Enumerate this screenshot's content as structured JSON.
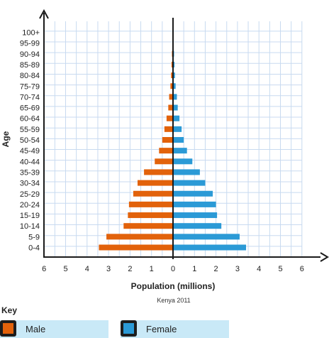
{
  "chart_data": {
    "type": "bar",
    "orientation": "horizontal",
    "title": "",
    "caption": "Kenya 2011",
    "xlabel": "Population (millions)",
    "ylabel": "Age",
    "xlim": [
      -6,
      6
    ],
    "x_tick_labels": [
      "6",
      "5",
      "4",
      "3",
      "2",
      "1",
      "0",
      "1",
      "2",
      "3",
      "4",
      "5",
      "6"
    ],
    "grid": true,
    "categories": [
      "0-4",
      "5-9",
      "10-14",
      "15-19",
      "20-24",
      "25-29",
      "30-34",
      "35-39",
      "40-44",
      "45-49",
      "50-54",
      "55-59",
      "60-64",
      "65-69",
      "70-74",
      "75-79",
      "80-84",
      "85-89",
      "90-94",
      "95-99",
      "100+"
    ],
    "series": [
      {
        "name": "Male",
        "color": "#e2620b",
        "values": [
          3.45,
          3.1,
          2.3,
          2.1,
          2.05,
          1.85,
          1.65,
          1.35,
          0.85,
          0.65,
          0.5,
          0.4,
          0.3,
          0.22,
          0.18,
          0.12,
          0.09,
          0.07,
          0.05,
          0.03,
          0
        ]
      },
      {
        "name": "Female",
        "color": "#2b9ad6",
        "values": [
          3.4,
          3.1,
          2.25,
          2.05,
          2.0,
          1.85,
          1.5,
          1.25,
          0.9,
          0.65,
          0.5,
          0.4,
          0.3,
          0.22,
          0.18,
          0.12,
          0.09,
          0.07,
          0.05,
          0.03,
          0
        ]
      }
    ]
  },
  "key": {
    "title": "Key",
    "items": [
      {
        "label": "Male",
        "color": "#e2620b"
      },
      {
        "label": "Female",
        "color": "#2b9ad6"
      }
    ]
  }
}
